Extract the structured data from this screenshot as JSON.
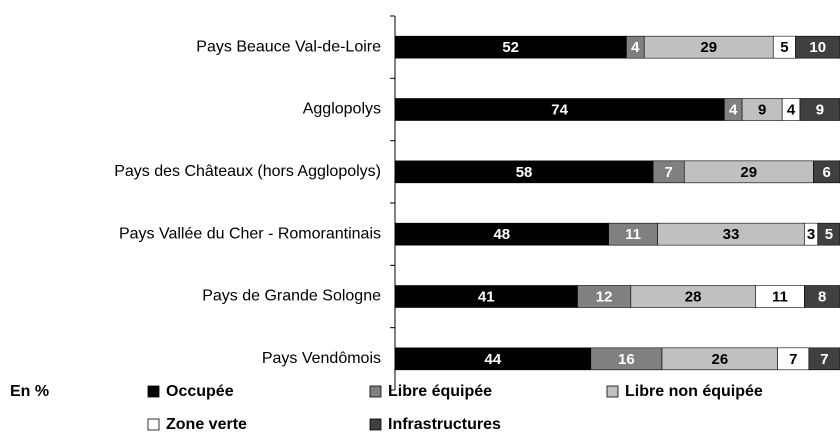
{
  "chart_data": {
    "type": "stacked-barh",
    "categories": [
      "Pays Beauce Val-de-Loire",
      "Agglopolys",
      "Pays des Châteaux (hors Agglopolys)",
      "Pays Vallée du Cher - Romorantinais",
      "Pays de Grande Sologne",
      "Pays Vendômois"
    ],
    "series": [
      {
        "name": "Occupée",
        "color": "#000000",
        "values": [
          52,
          74,
          58,
          48,
          41,
          44
        ]
      },
      {
        "name": "Libre équipée",
        "color": "#808080",
        "values": [
          4,
          4,
          7,
          11,
          12,
          16
        ]
      },
      {
        "name": "Libre non équipée",
        "color": "#c0c0c0",
        "values": [
          29,
          9,
          29,
          33,
          28,
          26
        ]
      },
      {
        "name": "Zone verte",
        "color": "#ffffff",
        "values": [
          5,
          4,
          null,
          3,
          11,
          7
        ]
      },
      {
        "name": "Infrastructures",
        "color": "#404040",
        "values": [
          10,
          9,
          6,
          5,
          8,
          7
        ]
      }
    ],
    "xlim": [
      0,
      100
    ],
    "unit_note": "En %"
  }
}
